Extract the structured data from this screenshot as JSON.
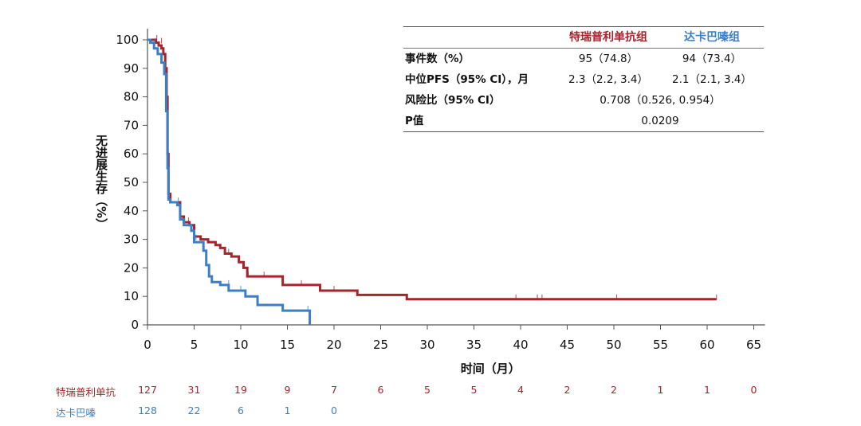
{
  "colors": {
    "arm1": "#a3252d",
    "arm2": "#3c7fc4",
    "axis": "#555555",
    "text": "#111111"
  },
  "chart_data": {
    "type": "line",
    "subtype": "kaplan-meier-step",
    "ylabel": "无进展生存（%）",
    "xlabel": "时间（月）",
    "xlim": [
      0,
      65
    ],
    "ylim": [
      0,
      100
    ],
    "xticks": [
      0,
      5,
      10,
      15,
      20,
      25,
      30,
      35,
      40,
      45,
      50,
      55,
      60,
      65
    ],
    "yticks": [
      0,
      10,
      20,
      30,
      40,
      50,
      60,
      70,
      80,
      90,
      100
    ],
    "grid": false,
    "series": [
      {
        "name": "特瑞普利单抗组",
        "color": "#a3252d",
        "points": [
          [
            0,
            100
          ],
          [
            0.6,
            100
          ],
          [
            0.9,
            99
          ],
          [
            1.2,
            98
          ],
          [
            1.5,
            97
          ],
          [
            1.7,
            95
          ],
          [
            1.9,
            90
          ],
          [
            2.05,
            80
          ],
          [
            2.15,
            60
          ],
          [
            2.25,
            46
          ],
          [
            2.45,
            43
          ],
          [
            3.2,
            43
          ],
          [
            3.5,
            38
          ],
          [
            3.9,
            36
          ],
          [
            4.5,
            35
          ],
          [
            5.0,
            31
          ],
          [
            5.7,
            30
          ],
          [
            6.5,
            29
          ],
          [
            7.3,
            28
          ],
          [
            7.8,
            27
          ],
          [
            8.3,
            25
          ],
          [
            9.0,
            24
          ],
          [
            9.8,
            22
          ],
          [
            10.3,
            20
          ],
          [
            10.7,
            17
          ],
          [
            13.0,
            17
          ],
          [
            14.5,
            14
          ],
          [
            18.5,
            12
          ],
          [
            22.5,
            10.5
          ],
          [
            27.8,
            9
          ],
          [
            61,
            9
          ]
        ],
        "censors": [
          [
            1.0,
            100
          ],
          [
            1.5,
            99
          ],
          [
            4.4,
            36
          ],
          [
            8.7,
            25
          ],
          [
            10.8,
            17
          ],
          [
            12.5,
            17
          ],
          [
            16.5,
            14
          ],
          [
            20.0,
            12
          ],
          [
            39.5,
            9
          ],
          [
            41.8,
            9
          ],
          [
            42.3,
            9
          ],
          [
            50.3,
            9
          ],
          [
            61,
            9
          ]
        ]
      },
      {
        "name": "达卡巴嗪组",
        "color": "#3c7fc4",
        "points": [
          [
            0,
            100
          ],
          [
            0.3,
            99
          ],
          [
            0.7,
            97
          ],
          [
            1.1,
            95
          ],
          [
            1.5,
            92
          ],
          [
            1.8,
            88
          ],
          [
            2.0,
            75
          ],
          [
            2.15,
            55
          ],
          [
            2.25,
            44
          ],
          [
            2.45,
            43
          ],
          [
            3.2,
            42
          ],
          [
            3.5,
            37
          ],
          [
            3.9,
            35
          ],
          [
            4.7,
            33
          ],
          [
            5.0,
            29
          ],
          [
            6.0,
            26
          ],
          [
            6.3,
            21
          ],
          [
            6.6,
            17
          ],
          [
            6.9,
            15
          ],
          [
            7.8,
            14
          ],
          [
            8.7,
            12
          ],
          [
            10.5,
            10
          ],
          [
            11.8,
            7
          ],
          [
            14.5,
            5
          ],
          [
            17.4,
            5
          ],
          [
            17.4,
            0
          ]
        ],
        "censors": [
          [
            0.8,
            99
          ],
          [
            3.3,
            43
          ],
          [
            5.2,
            30
          ],
          [
            8.7,
            14
          ],
          [
            10.0,
            12
          ],
          [
            17.2,
            5
          ]
        ]
      }
    ],
    "table": {
      "columns": [
        "特瑞普利单抗组",
        "达卡巴嗪组"
      ],
      "rows": [
        {
          "label": "事件数（%）",
          "values": [
            "95（74.8）",
            "94（73.4）"
          ]
        },
        {
          "label": "中位PFS（95% CI），月",
          "values": [
            "2.3（2.2, 3.4）",
            "2.1（2.1, 3.4）"
          ]
        },
        {
          "label": "风险比（95% CI）",
          "value": "0.708（0.526, 0.954）"
        },
        {
          "label": "P值",
          "value": "0.0209"
        }
      ]
    },
    "at_risk": {
      "times": [
        0,
        5,
        10,
        15,
        20,
        25,
        30,
        35,
        40,
        45,
        50,
        55,
        60,
        65
      ],
      "rows": [
        {
          "label": "特瑞普利单抗",
          "color": "#a3252d",
          "values": [
            127,
            31,
            19,
            9,
            7,
            6,
            5,
            5,
            4,
            2,
            2,
            1,
            1,
            0
          ]
        },
        {
          "label": "达卡巴嗪",
          "color": "#3c7fc4",
          "values": [
            128,
            22,
            6,
            1,
            0
          ]
        }
      ]
    }
  }
}
